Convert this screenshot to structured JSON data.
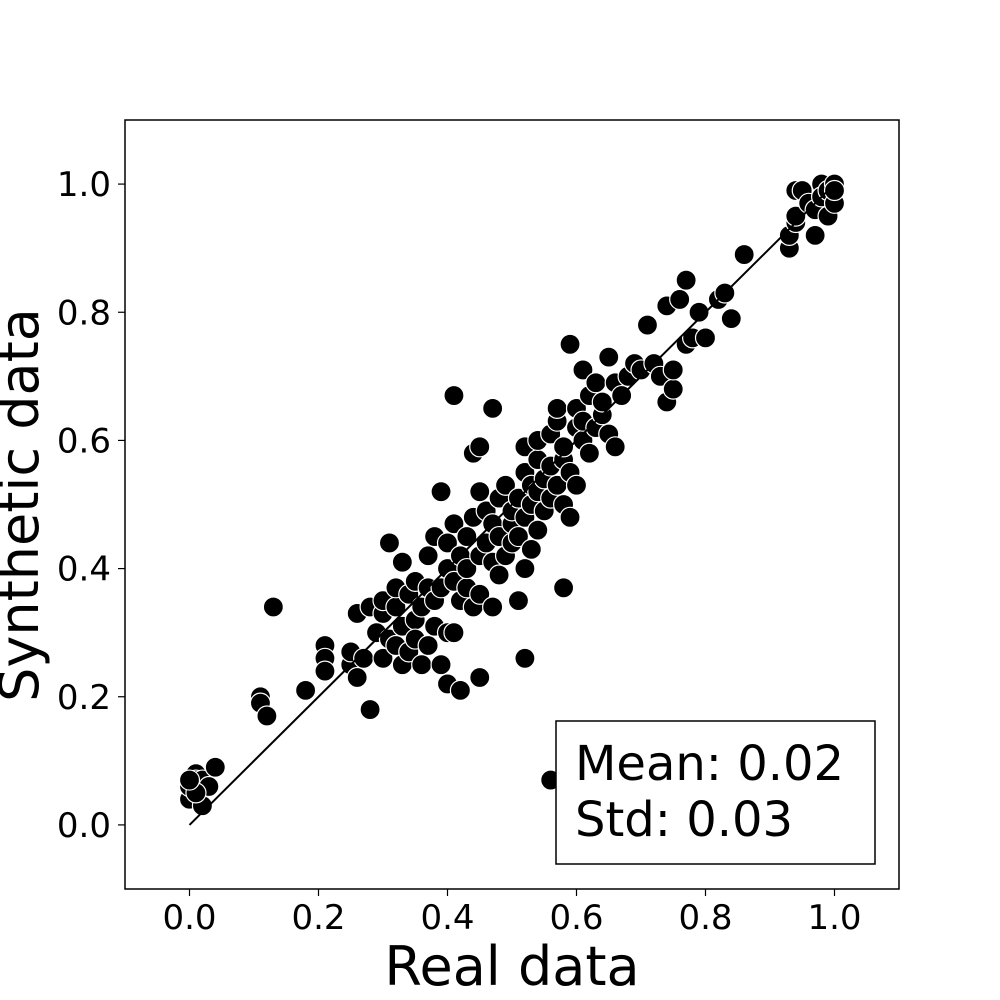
{
  "chart_data": {
    "type": "scatter",
    "xlabel": "Real data",
    "ylabel": "Synthetic data",
    "xlim": [
      -0.1,
      1.1
    ],
    "ylim": [
      -0.1,
      1.1
    ],
    "xticks": [
      "0.0",
      "0.2",
      "0.4",
      "0.6",
      "0.8",
      "1.0"
    ],
    "yticks": [
      "0.0",
      "0.2",
      "0.4",
      "0.6",
      "0.8",
      "1.0"
    ],
    "grid": false,
    "reference_line": {
      "from": [
        0,
        0
      ],
      "to": [
        1,
        1
      ],
      "color": "#000000"
    },
    "marker_color": "#000000",
    "marker_edge_color": "#ffffff",
    "stats_box": {
      "mean_label": "Mean: 0.02",
      "std_label": "Std: 0.03",
      "placement": "lower-right"
    },
    "points": [
      [
        0.0,
        0.04
      ],
      [
        0.0,
        0.06
      ],
      [
        0.01,
        0.08
      ],
      [
        0.01,
        0.07
      ],
      [
        0.02,
        0.03
      ],
      [
        0.02,
        0.07
      ],
      [
        0.03,
        0.06
      ],
      [
        0.04,
        0.09
      ],
      [
        0.01,
        0.05
      ],
      [
        0.0,
        0.07
      ],
      [
        0.11,
        0.2
      ],
      [
        0.11,
        0.19
      ],
      [
        0.12,
        0.17
      ],
      [
        0.13,
        0.34
      ],
      [
        0.18,
        0.21
      ],
      [
        0.21,
        0.28
      ],
      [
        0.21,
        0.26
      ],
      [
        0.21,
        0.24
      ],
      [
        0.25,
        0.25
      ],
      [
        0.25,
        0.27
      ],
      [
        0.26,
        0.23
      ],
      [
        0.26,
        0.33
      ],
      [
        0.27,
        0.26
      ],
      [
        0.28,
        0.34
      ],
      [
        0.28,
        0.18
      ],
      [
        0.29,
        0.3
      ],
      [
        0.3,
        0.26
      ],
      [
        0.3,
        0.33
      ],
      [
        0.3,
        0.35
      ],
      [
        0.31,
        0.29
      ],
      [
        0.31,
        0.44
      ],
      [
        0.32,
        0.28
      ],
      [
        0.32,
        0.34
      ],
      [
        0.32,
        0.37
      ],
      [
        0.33,
        0.25
      ],
      [
        0.33,
        0.31
      ],
      [
        0.33,
        0.41
      ],
      [
        0.34,
        0.36
      ],
      [
        0.34,
        0.27
      ],
      [
        0.35,
        0.32
      ],
      [
        0.35,
        0.38
      ],
      [
        0.35,
        0.29
      ],
      [
        0.36,
        0.34
      ],
      [
        0.36,
        0.25
      ],
      [
        0.37,
        0.28
      ],
      [
        0.37,
        0.37
      ],
      [
        0.37,
        0.42
      ],
      [
        0.38,
        0.35
      ],
      [
        0.38,
        0.31
      ],
      [
        0.38,
        0.45
      ],
      [
        0.39,
        0.25
      ],
      [
        0.39,
        0.37
      ],
      [
        0.39,
        0.52
      ],
      [
        0.4,
        0.4
      ],
      [
        0.4,
        0.3
      ],
      [
        0.4,
        0.22
      ],
      [
        0.4,
        0.44
      ],
      [
        0.41,
        0.38
      ],
      [
        0.41,
        0.47
      ],
      [
        0.41,
        0.67
      ],
      [
        0.41,
        0.3
      ],
      [
        0.42,
        0.42
      ],
      [
        0.42,
        0.21
      ],
      [
        0.42,
        0.35
      ],
      [
        0.43,
        0.37
      ],
      [
        0.43,
        0.45
      ],
      [
        0.43,
        0.4
      ],
      [
        0.44,
        0.48
      ],
      [
        0.44,
        0.34
      ],
      [
        0.44,
        0.58
      ],
      [
        0.45,
        0.42
      ],
      [
        0.45,
        0.52
      ],
      [
        0.45,
        0.59
      ],
      [
        0.45,
        0.36
      ],
      [
        0.45,
        0.23
      ],
      [
        0.46,
        0.44
      ],
      [
        0.46,
        0.49
      ],
      [
        0.47,
        0.41
      ],
      [
        0.47,
        0.65
      ],
      [
        0.47,
        0.47
      ],
      [
        0.47,
        0.34
      ],
      [
        0.48,
        0.39
      ],
      [
        0.48,
        0.45
      ],
      [
        0.48,
        0.51
      ],
      [
        0.49,
        0.42
      ],
      [
        0.49,
        0.53
      ],
      [
        0.5,
        0.47
      ],
      [
        0.5,
        0.44
      ],
      [
        0.5,
        0.49
      ],
      [
        0.51,
        0.45
      ],
      [
        0.51,
        0.35
      ],
      [
        0.51,
        0.51
      ],
      [
        0.52,
        0.26
      ],
      [
        0.52,
        0.4
      ],
      [
        0.52,
        0.48
      ],
      [
        0.52,
        0.55
      ],
      [
        0.52,
        0.59
      ],
      [
        0.53,
        0.5
      ],
      [
        0.53,
        0.53
      ],
      [
        0.53,
        0.43
      ],
      [
        0.54,
        0.52
      ],
      [
        0.54,
        0.57
      ],
      [
        0.54,
        0.46
      ],
      [
        0.54,
        0.6
      ],
      [
        0.55,
        0.49
      ],
      [
        0.55,
        0.54
      ],
      [
        0.56,
        0.51
      ],
      [
        0.56,
        0.61
      ],
      [
        0.56,
        0.56
      ],
      [
        0.56,
        0.07
      ],
      [
        0.57,
        0.53
      ],
      [
        0.57,
        0.63
      ],
      [
        0.57,
        0.65
      ],
      [
        0.58,
        0.37
      ],
      [
        0.58,
        0.5
      ],
      [
        0.58,
        0.57
      ],
      [
        0.58,
        0.59
      ],
      [
        0.59,
        0.75
      ],
      [
        0.59,
        0.48
      ],
      [
        0.59,
        0.55
      ],
      [
        0.6,
        0.53
      ],
      [
        0.6,
        0.62
      ],
      [
        0.6,
        0.65
      ],
      [
        0.61,
        0.6
      ],
      [
        0.61,
        0.63
      ],
      [
        0.61,
        0.71
      ],
      [
        0.62,
        0.58
      ],
      [
        0.62,
        0.67
      ],
      [
        0.63,
        0.62
      ],
      [
        0.63,
        0.69
      ],
      [
        0.64,
        0.64
      ],
      [
        0.64,
        0.66
      ],
      [
        0.65,
        0.73
      ],
      [
        0.65,
        0.61
      ],
      [
        0.66,
        0.69
      ],
      [
        0.66,
        0.59
      ],
      [
        0.67,
        0.67
      ],
      [
        0.68,
        0.7
      ],
      [
        0.69,
        0.72
      ],
      [
        0.7,
        0.71
      ],
      [
        0.71,
        0.78
      ],
      [
        0.72,
        0.72
      ],
      [
        0.73,
        0.7
      ],
      [
        0.74,
        0.81
      ],
      [
        0.74,
        0.66
      ],
      [
        0.75,
        0.68
      ],
      [
        0.75,
        0.71
      ],
      [
        0.76,
        0.82
      ],
      [
        0.77,
        0.85
      ],
      [
        0.77,
        0.75
      ],
      [
        0.78,
        0.76
      ],
      [
        0.79,
        0.8
      ],
      [
        0.8,
        0.76
      ],
      [
        0.82,
        0.82
      ],
      [
        0.83,
        0.83
      ],
      [
        0.84,
        0.79
      ],
      [
        0.86,
        0.89
      ],
      [
        0.93,
        0.9
      ],
      [
        0.93,
        0.92
      ],
      [
        0.94,
        0.94
      ],
      [
        0.94,
        0.95
      ],
      [
        0.94,
        0.99
      ],
      [
        0.95,
        0.99
      ],
      [
        0.96,
        0.97
      ],
      [
        0.97,
        0.92
      ],
      [
        0.97,
        0.96
      ],
      [
        0.98,
        1.0
      ],
      [
        0.98,
        0.98
      ],
      [
        0.99,
        0.99
      ],
      [
        0.99,
        0.95
      ],
      [
        1.0,
        1.0
      ],
      [
        1.0,
        0.97
      ],
      [
        1.0,
        0.99
      ]
    ]
  }
}
